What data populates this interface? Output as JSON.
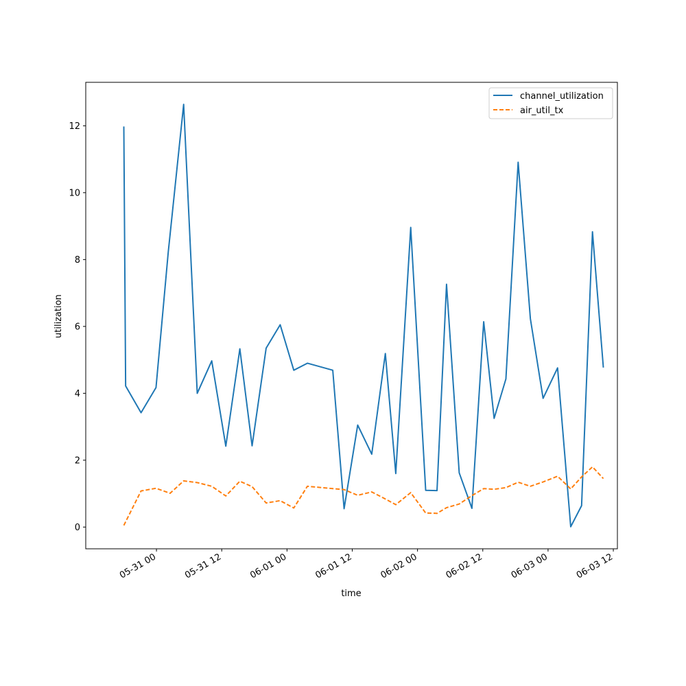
{
  "chart_data": {
    "type": "line",
    "xlabel": "time",
    "ylabel": "utilization",
    "xlim": [
      "2023-05-30 11:00",
      "2023-06-03 12:45"
    ],
    "ylim": [
      -0.65,
      13.3
    ],
    "x_ticks": [
      "05-31 00",
      "05-31 12",
      "06-01 00",
      "06-01 12",
      "06-02 00",
      "06-02 12",
      "06-03 00",
      "06-03 12"
    ],
    "y_ticks": [
      "0",
      "2",
      "4",
      "6",
      "8",
      "10",
      "12"
    ],
    "legend_position": "top-right",
    "grid": false,
    "series": [
      {
        "name": "channel_utilization",
        "color": "#1f77b4",
        "style": "solid",
        "x": [
          "2023-05-30 18:00",
          "2023-05-30 18:20",
          "2023-05-30 21:10",
          "2023-05-30 23:55",
          "2023-05-31 02:10",
          "2023-05-31 05:00",
          "2023-05-31 07:30",
          "2023-05-31 10:10",
          "2023-05-31 12:45",
          "2023-05-31 15:20",
          "2023-05-31 17:35",
          "2023-05-31 20:10",
          "2023-05-31 22:45",
          "2023-06-01 01:15",
          "2023-06-01 03:45",
          "2023-06-01 08:25",
          "2023-06-01 10:30",
          "2023-06-01 13:00",
          "2023-06-01 15:35",
          "2023-06-01 18:05",
          "2023-06-01 20:00",
          "2023-06-01 22:45",
          "2023-06-02 01:30",
          "2023-06-02 03:35",
          "2023-06-02 05:20",
          "2023-06-02 07:40",
          "2023-06-02 10:00",
          "2023-06-02 12:10",
          "2023-06-02 14:05",
          "2023-06-02 16:15",
          "2023-06-02 18:30",
          "2023-06-02 20:45",
          "2023-06-02 23:05",
          "2023-06-03 01:45",
          "2023-06-03 04:10",
          "2023-06-03 06:10",
          "2023-06-03 08:10",
          "2023-06-03 10:10"
        ],
        "values": [
          11.98,
          4.22,
          3.42,
          4.17,
          8.22,
          12.64,
          4.0,
          4.97,
          2.42,
          5.33,
          2.43,
          5.35,
          6.05,
          4.69,
          4.9,
          4.69,
          0.55,
          3.05,
          2.18,
          5.19,
          1.6,
          8.96,
          1.1,
          1.09,
          7.26,
          1.62,
          0.56,
          6.14,
          3.25,
          4.43,
          10.91,
          6.23,
          3.85,
          4.76,
          0.01,
          0.64,
          8.83,
          4.77
        ]
      },
      {
        "name": "air_util_tx",
        "color": "#ff7f0e",
        "style": "dashed",
        "x": [
          "2023-05-30 18:00",
          "2023-05-30 21:10",
          "2023-05-30 23:55",
          "2023-05-31 02:30",
          "2023-05-31 05:00",
          "2023-05-31 07:30",
          "2023-05-31 10:10",
          "2023-05-31 12:45",
          "2023-05-31 15:20",
          "2023-05-31 17:35",
          "2023-05-31 20:10",
          "2023-05-31 22:45",
          "2023-06-01 01:15",
          "2023-06-01 03:45",
          "2023-06-01 08:25",
          "2023-06-01 10:30",
          "2023-06-01 13:00",
          "2023-06-01 15:35",
          "2023-06-01 18:05",
          "2023-06-01 20:00",
          "2023-06-01 22:45",
          "2023-06-02 01:30",
          "2023-06-02 03:35",
          "2023-06-02 05:20",
          "2023-06-02 07:40",
          "2023-06-02 10:00",
          "2023-06-02 12:10",
          "2023-06-02 14:05",
          "2023-06-02 16:15",
          "2023-06-02 18:30",
          "2023-06-02 20:45",
          "2023-06-02 23:05",
          "2023-06-03 01:45",
          "2023-06-03 04:10",
          "2023-06-03 06:10",
          "2023-06-03 08:10",
          "2023-06-03 10:10"
        ],
        "values": [
          0.05,
          1.08,
          1.16,
          1.01,
          1.38,
          1.33,
          1.22,
          0.93,
          1.37,
          1.21,
          0.72,
          0.79,
          0.57,
          1.22,
          1.15,
          1.12,
          0.95,
          1.05,
          0.84,
          0.67,
          1.03,
          0.42,
          0.41,
          0.58,
          0.69,
          0.94,
          1.15,
          1.13,
          1.18,
          1.34,
          1.22,
          1.35,
          1.52,
          1.14,
          1.5,
          1.8,
          1.45
        ]
      }
    ]
  }
}
